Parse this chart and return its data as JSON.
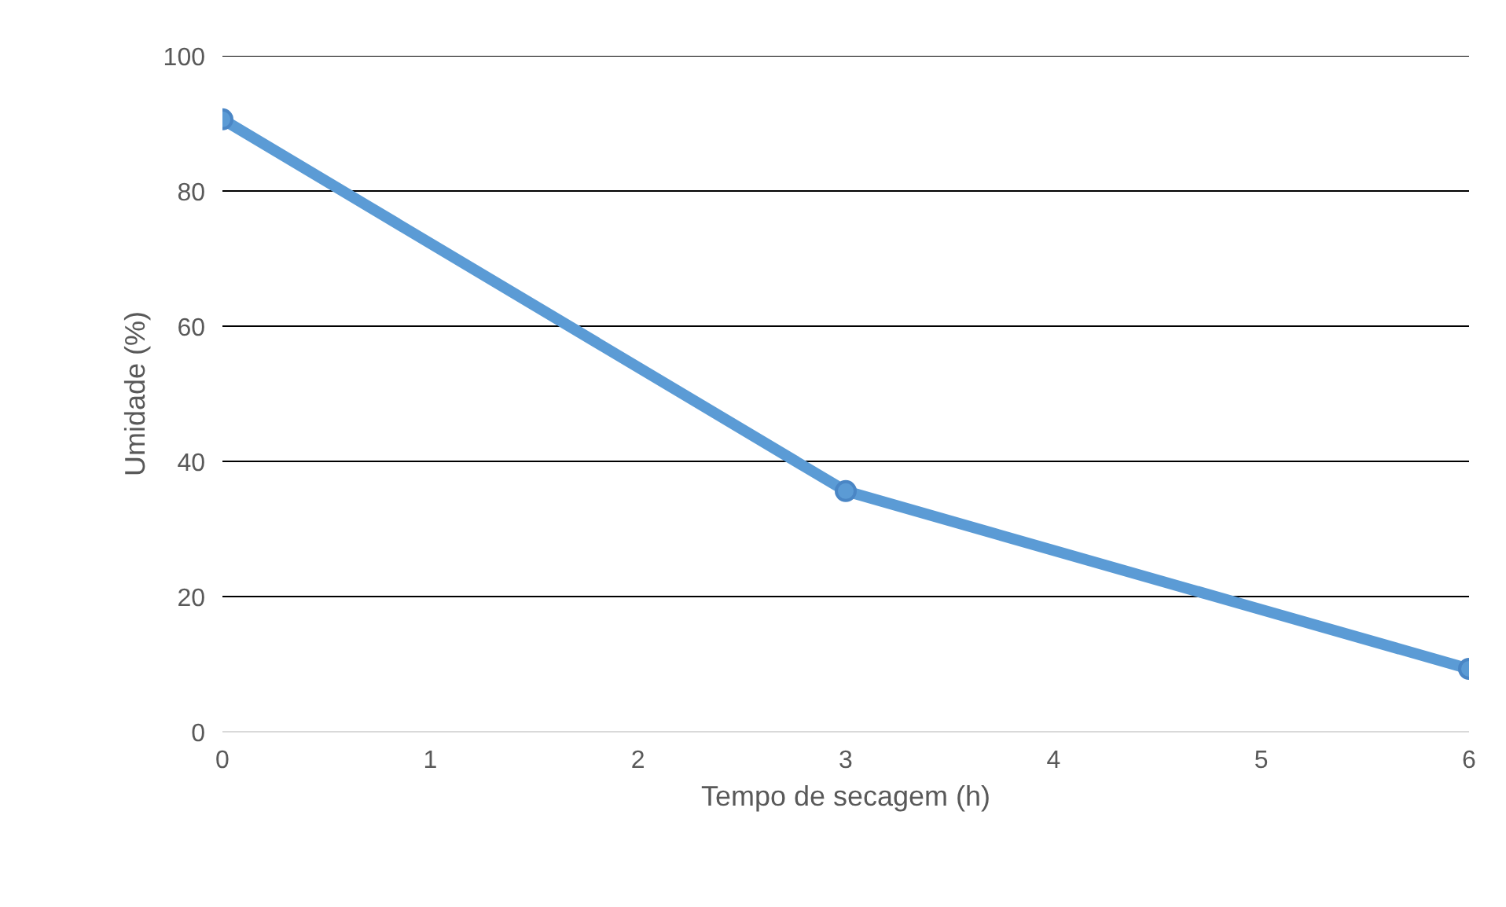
{
  "chart_data": {
    "type": "line",
    "xlabel": "Tempo de secagem (h)",
    "ylabel": "Umidade (%)",
    "x": [
      0,
      3,
      6
    ],
    "series": [
      {
        "color": "#5b9bd5",
        "values": [
          90.6,
          35.6,
          9.3
        ]
      }
    ],
    "xlim": [
      0,
      6
    ],
    "xticks": [
      0,
      1,
      2,
      3,
      4,
      5,
      6
    ],
    "ylim": [
      0,
      100
    ],
    "yticks": [
      0,
      20,
      40,
      60,
      80,
      100
    ],
    "grid": "y",
    "marker": "circle",
    "line_style": "solid"
  }
}
